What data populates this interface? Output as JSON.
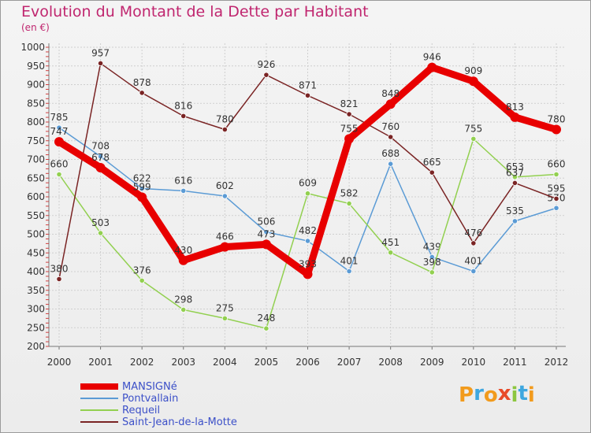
{
  "colors": {
    "title": "#c0266f",
    "axis": "#555555",
    "grid": "#cfcfcf",
    "label": "#333333",
    "legend_text": "#3c50c8"
  },
  "logo": {
    "letters": [
      "P",
      "r",
      "o",
      "x",
      "i",
      "t",
      "i"
    ],
    "colors": [
      "#f29b1d",
      "#3ea7df",
      "#f29b1d",
      "#e84b2a",
      "#8cc63f",
      "#3ea7df",
      "#f29b1d"
    ]
  },
  "chart_data": {
    "type": "line",
    "title": "Evolution du Montant de la Dette par Habitant",
    "subtitle": "(en €)",
    "xlabel": "",
    "ylabel": "",
    "ylim": [
      200,
      1000
    ],
    "ytick_step": 50,
    "grid": true,
    "legend_position": "bottom-left",
    "x": [
      "2000",
      "2001",
      "2002",
      "2003",
      "2004",
      "2005",
      "2006",
      "2007",
      "2008",
      "2009",
      "2010",
      "2011",
      "2012"
    ],
    "series": [
      {
        "name": "MANSIGNé",
        "color": "#e80000",
        "emphasis": true,
        "values": [
          747,
          678,
          599,
          430,
          466,
          473,
          393,
          755,
          848,
          946,
          909,
          813,
          780
        ]
      },
      {
        "name": "Pontvallain",
        "color": "#5b9bd5",
        "emphasis": false,
        "values": [
          785,
          708,
          622,
          616,
          602,
          506,
          482,
          401,
          688,
          439,
          401,
          535,
          570
        ]
      },
      {
        "name": "Requeil",
        "color": "#92d050",
        "emphasis": false,
        "values": [
          660,
          503,
          376,
          298,
          275,
          248,
          609,
          582,
          451,
          398,
          755,
          653,
          660
        ]
      },
      {
        "name": "Saint-Jean-de-la-Motte",
        "color": "#7a2424",
        "emphasis": false,
        "values": [
          380,
          957,
          878,
          816,
          780,
          926,
          871,
          821,
          760,
          665,
          476,
          637,
          595
        ]
      }
    ]
  }
}
